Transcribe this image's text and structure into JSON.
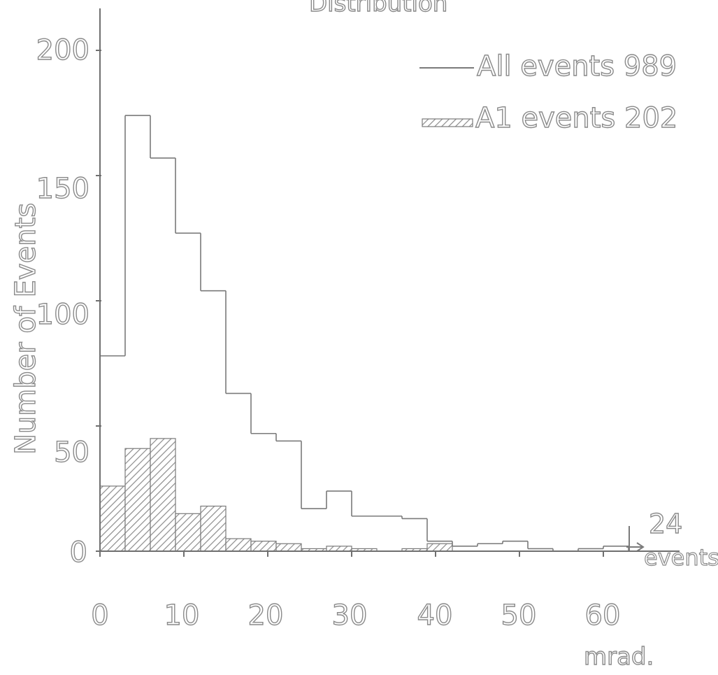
{
  "chart_data": {
    "type": "bar",
    "title": "Distribution",
    "xlabel": "mrad.",
    "ylabel": "Number of Events",
    "xlim": [
      0,
      70
    ],
    "ylim": [
      0,
      215
    ],
    "x_ticks": [
      "0",
      "10",
      "20",
      "30",
      "40",
      "50",
      "60"
    ],
    "y_ticks": [
      "0",
      "50",
      "100",
      "150",
      "200"
    ],
    "bin_edges": [
      0,
      3,
      6,
      9,
      12,
      15,
      18,
      21,
      24,
      27,
      30,
      33,
      36,
      39,
      42,
      45,
      48,
      51,
      54,
      57,
      60,
      63
    ],
    "series": [
      {
        "name": "All events 989",
        "style": "outline",
        "values": [
          78,
          174,
          157,
          127,
          104,
          63,
          47,
          44,
          17,
          24,
          14,
          14,
          13,
          4,
          2,
          3,
          4,
          1,
          0,
          1,
          2
        ]
      },
      {
        "name": "A1 events 202",
        "style": "hatched",
        "values": [
          26,
          41,
          45,
          15,
          18,
          5,
          4,
          3,
          1,
          2,
          1,
          0,
          1,
          3,
          0,
          0,
          0,
          0,
          0,
          0,
          0
        ]
      }
    ],
    "annotation": {
      "count": "24",
      "text": "events"
    },
    "grid": false,
    "legend_position": "top-right"
  }
}
